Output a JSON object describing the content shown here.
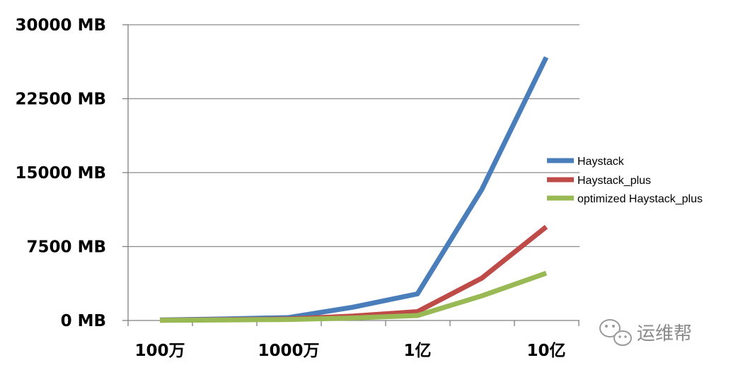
{
  "chart_data": {
    "type": "line",
    "title": "",
    "xlabel": "",
    "ylabel": "",
    "x_tick_labels": [
      "100万",
      "1000万",
      "1亿",
      "10亿"
    ],
    "y_tick_labels": [
      "0 MB",
      "7500 MB",
      "15000 MB",
      "22500 MB",
      "30000 MB"
    ],
    "y_ticks": [
      0,
      7500,
      15000,
      22500,
      30000
    ],
    "ylim": [
      0,
      30000
    ],
    "grid": true,
    "legend_position": "right",
    "series": [
      {
        "name": "Haystack",
        "color": "#4a7ebb",
        "values": [
          50,
          150,
          300,
          1350,
          2700,
          13300,
          26700
        ]
      },
      {
        "name": "Haystack_plus",
        "color": "#be4b48",
        "values": [
          30,
          80,
          150,
          450,
          900,
          4300,
          9500
        ]
      },
      {
        "name": "optimized Haystack_plus",
        "color": "#98b954",
        "values": [
          20,
          50,
          100,
          250,
          500,
          2500,
          4800
        ]
      }
    ]
  },
  "watermark": {
    "text": "运维帮",
    "icon": "wechat-icon"
  }
}
